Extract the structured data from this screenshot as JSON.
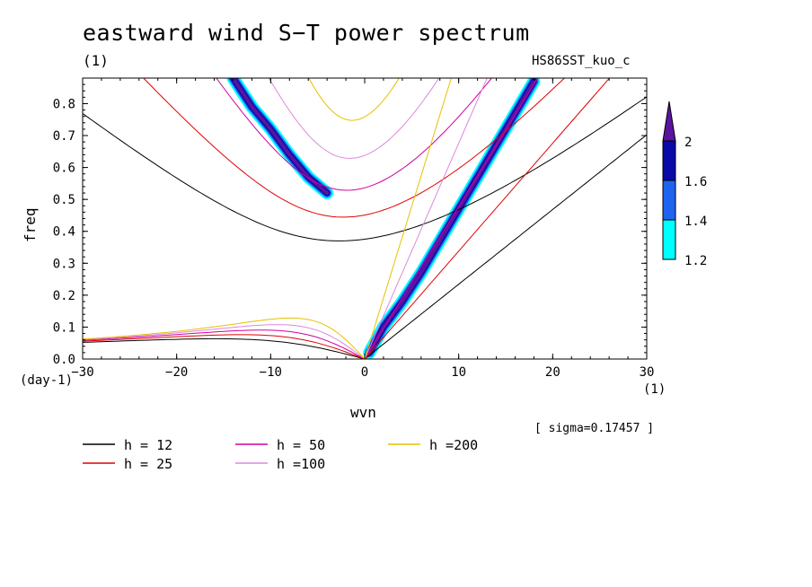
{
  "title": "eastward wind S−T power spectrum",
  "subtitle": "(1)",
  "run_name": "HS86SST_kuo_c",
  "sigma_note": "[ sigma=0.17457 ]",
  "chart_data": {
    "type": "heatmap",
    "xlabel": "wvn",
    "ylabel": "freq",
    "x_unit": "(1)",
    "y_unit": "(day-1)",
    "xlim": [
      -30,
      30
    ],
    "ylim": [
      0,
      0.88
    ],
    "xticks": [
      -30,
      -20,
      -10,
      0,
      10,
      20,
      30
    ],
    "yticks": [
      0.0,
      0.1,
      0.2,
      0.3,
      0.4,
      0.5,
      0.6,
      0.7,
      0.8
    ],
    "ytick_labels": [
      "0.0",
      "0.1",
      "0.2",
      "0.3",
      "0.4",
      "0.5",
      "0.6",
      "0.7",
      "0.8"
    ],
    "contour_levels": [
      1.2,
      1.4,
      1.6,
      2
    ],
    "colorbar": {
      "labels": [
        "1.2",
        "1.4",
        "1.6",
        "2"
      ],
      "colors": [
        "#00ffff",
        "#1e64f0",
        "#0a0aa8",
        "#5a14a0"
      ]
    },
    "features": [
      {
        "name": "kelvin_band",
        "x": [
          0.5,
          2,
          4,
          6,
          8,
          10,
          12,
          14,
          16,
          18
        ],
        "y": [
          0.02,
          0.1,
          0.18,
          0.27,
          0.37,
          0.47,
          0.57,
          0.67,
          0.77,
          0.87
        ]
      },
      {
        "name": "rossby_gravity_band",
        "x": [
          -14,
          -12,
          -10,
          -8,
          -6,
          -4
        ],
        "y": [
          0.88,
          0.79,
          0.72,
          0.64,
          0.57,
          0.52
        ]
      }
    ],
    "series": [
      {
        "name": "h = 12",
        "equivalent_depth": 12,
        "color": "#000000"
      },
      {
        "name": "h = 25",
        "equivalent_depth": 25,
        "color": "#e00000"
      },
      {
        "name": "h = 50",
        "equivalent_depth": 50,
        "color": "#d000a0"
      },
      {
        "name": "h =100",
        "equivalent_depth": 100,
        "color": "#dd88dd"
      },
      {
        "name": "h =200",
        "equivalent_depth": 200,
        "color": "#e8c000"
      }
    ]
  }
}
